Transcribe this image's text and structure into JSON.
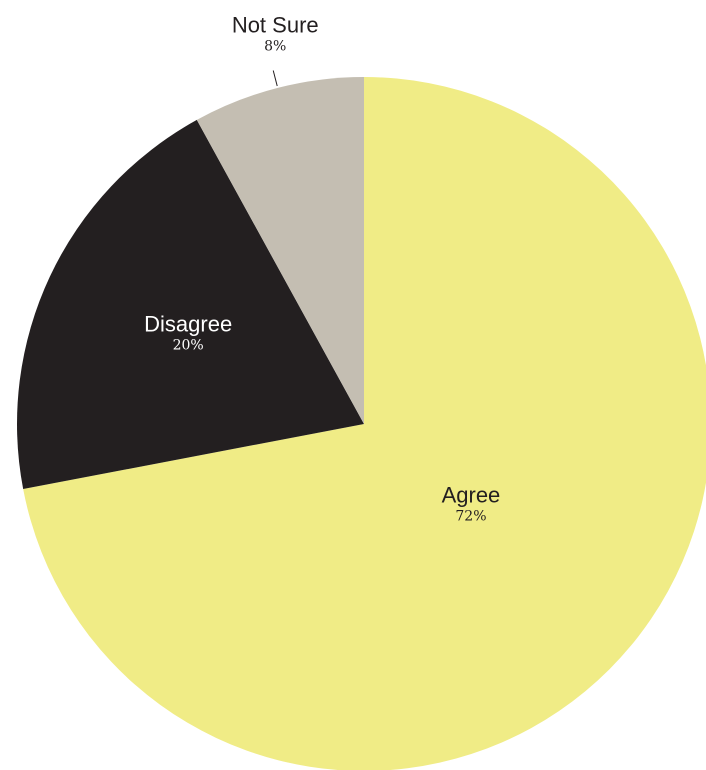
{
  "chart_data": {
    "type": "pie",
    "title": "",
    "slices": [
      {
        "label": "Agree",
        "value": 72,
        "value_label": "72%",
        "color": "#F0EC86",
        "text_color": "#231F20"
      },
      {
        "label": "Disagree",
        "value": 20,
        "value_label": "20%",
        "color": "#231F20",
        "text_color": "#FFFFFF"
      },
      {
        "label": "Not Sure",
        "value": 8,
        "value_label": "8%",
        "color": "#C4BEB2",
        "text_color": "#231F20"
      }
    ],
    "start_angle": "12 o'clock",
    "direction": "clockwise",
    "legend": "none"
  }
}
